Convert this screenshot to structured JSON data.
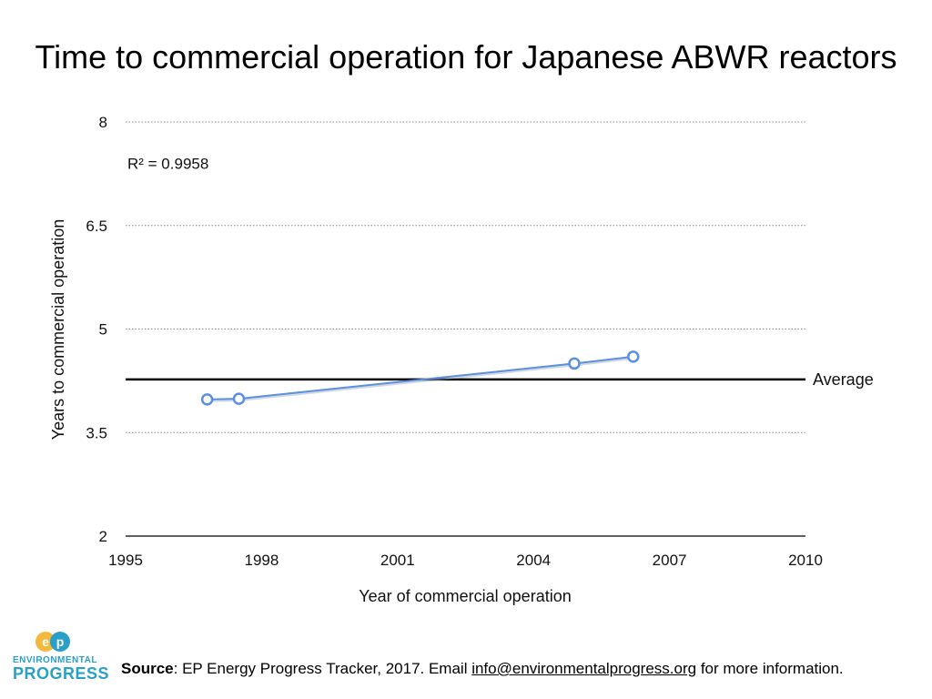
{
  "chart_data": {
    "type": "line",
    "title": "Time to commercial operation for Japanese ABWR reactors",
    "xlabel": "Year of commercial operation",
    "ylabel": "Years to commercial operation",
    "xlim": [
      1995,
      2010
    ],
    "ylim": [
      2,
      8
    ],
    "x_ticks": [
      1995,
      1998,
      2001,
      2004,
      2007,
      2010
    ],
    "y_ticks": [
      2,
      3.5,
      5,
      6.5,
      8
    ],
    "grid": "horizontal dotted",
    "series": [
      {
        "x": [
          1996.8,
          1997.5,
          2004.9,
          2006.2
        ],
        "y": [
          3.98,
          3.99,
          4.5,
          4.6
        ],
        "color": "#5b8fe0"
      }
    ],
    "reference_line": {
      "label": "Average",
      "value": 4.27,
      "color": "#000000"
    },
    "annotation": "R² = 0.9958"
  },
  "footer": {
    "source_label": "Source",
    "source_text": ": EP Energy Progress Tracker, 2017. Email ",
    "email": "info@environmentalprogress.org",
    "suffix": " for more information."
  },
  "logo": {
    "monogram": "EP",
    "line1": "ENVIRONMENTAL",
    "line2": "PROGRESS",
    "colors": [
      "#f5b83d",
      "#2aa0c8"
    ]
  }
}
